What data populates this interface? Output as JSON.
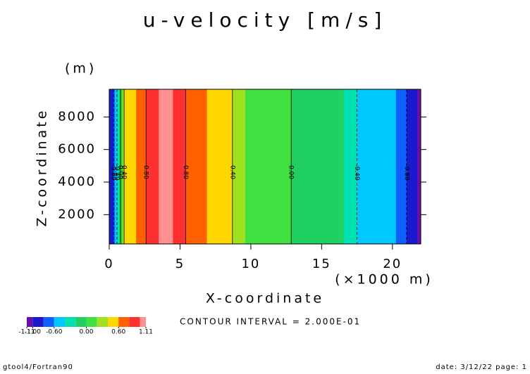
{
  "chart_data": {
    "type": "contour",
    "title": "u-velocity [m/s]",
    "y_unit": "(m)",
    "y_label": "Z-coordinate",
    "x_label": "X-coordinate",
    "x_unit": "(×1000 m)",
    "x_edges": [
      0,
      0.3,
      0.4,
      0.55,
      0.7,
      0.8,
      0.95,
      1.05,
      1.9,
      2.6,
      3.5,
      4.5,
      5.4,
      6.9,
      8.7,
      9.6,
      12.85,
      16.55,
      17.5,
      20.25,
      21,
      21.75,
      22
    ],
    "values": [
      -0.9,
      -0.7,
      -0.5,
      -0.3,
      -0.1,
      0.1,
      0.3,
      0.5,
      0.7,
      0.9,
      1.05,
      0.9,
      0.7,
      0.5,
      0.3,
      0.1,
      -0.1,
      -0.3,
      -0.5,
      -0.7,
      -0.9,
      -1.05
    ],
    "contour_x": [
      0.3,
      0.55,
      0.8,
      1.05,
      2.6,
      5.4,
      8.7,
      12.85,
      17.5,
      21
    ],
    "contour_levels": [
      -0.8,
      -0.4,
      0,
      0.4,
      0.8,
      0.8,
      0.4,
      0,
      -0.4,
      -0.8
    ],
    "contour_labels": [
      "-0.80",
      "-0.40",
      "0.00",
      "0.40",
      "0.80",
      "0.80",
      "0.40",
      "0.00",
      "-0.40",
      "-0.80"
    ],
    "xlim": [
      0,
      22
    ],
    "xticks": [
      0,
      5,
      10,
      15,
      20
    ],
    "ylim": [
      200,
      9700
    ],
    "yticks": [
      2000,
      4000,
      6000,
      8000
    ],
    "colorbar": {
      "bounds": [
        -1.11,
        -1,
        -0.8,
        -0.6,
        -0.4,
        -0.2,
        0,
        0.2,
        0.4,
        0.6,
        0.8,
        1,
        1.11
      ],
      "colors": [
        "#6a0dad",
        "#1a1acc",
        "#1060ff",
        "#00c8ff",
        "#00e0b0",
        "#20d060",
        "#40e040",
        "#a0e020",
        "#ffd700",
        "#ff6000",
        "#ff3030",
        "#ff9090"
      ],
      "ticks": [
        {
          "value": -1.11,
          "label": "-1.11"
        },
        {
          "value": -1,
          "label": "-1.00"
        },
        {
          "value": -0.6,
          "label": "-0.60"
        },
        {
          "value": 0,
          "label": "0.00"
        },
        {
          "value": 0.6,
          "label": "0.60"
        },
        {
          "value": 1.11,
          "label": "1.11"
        }
      ]
    },
    "contour_interval": "CONTOUR INTERVAL = 2.000E-01",
    "footer_left": "gtool4/Fortran90",
    "footer_right": "date: 3/12/22 page: 1"
  }
}
